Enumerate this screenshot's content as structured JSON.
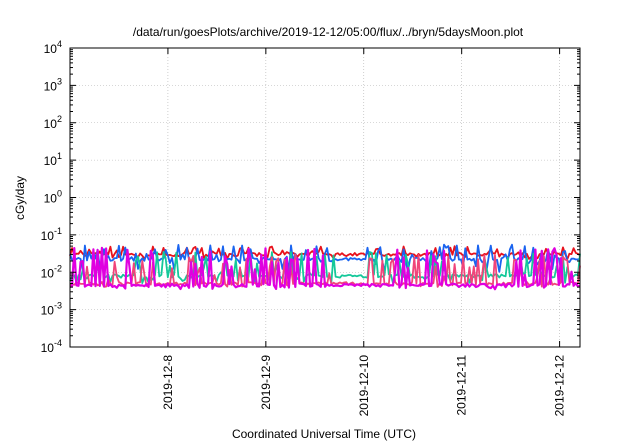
{
  "chart_data": {
    "type": "line",
    "title": "/data/run/goesPlots/archive/2019-12-12/05:00/flux/../bryn/5daysMoon.plot",
    "xlabel": "Coordinated Universal Time (UTC)",
    "ylabel": "cGy/day",
    "y_scale": "log",
    "ylim": [
      0.0001,
      10000
    ],
    "y_ticks": [
      {
        "base": "10",
        "exp": "-4"
      },
      {
        "base": "10",
        "exp": "-3"
      },
      {
        "base": "10",
        "exp": "-2"
      },
      {
        "base": "10",
        "exp": "-1"
      },
      {
        "base": "10",
        "exp": "0"
      },
      {
        "base": "10",
        "exp": "1"
      },
      {
        "base": "10",
        "exp": "2"
      },
      {
        "base": "10",
        "exp": "3"
      },
      {
        "base": "10",
        "exp": "4"
      }
    ],
    "x_range": [
      "2019-12-07 00:00",
      "2019-12-12 05:00"
    ],
    "x_ticks": [
      "2019-12-8",
      "2019-12-9",
      "2019-12-10",
      "2019-12-11",
      "2019-12-12"
    ],
    "grid": true,
    "legend": "none",
    "series": [
      {
        "color": "#e8121c",
        "baseline": 0.03,
        "spike_high": 0.05,
        "spike_low": 0.022
      },
      {
        "color": "#1a64f0",
        "baseline": 0.022,
        "spike_high": 0.055,
        "spike_low": 0.01
      },
      {
        "color": "#15c89a",
        "baseline": 0.008,
        "spike_high": 0.035,
        "spike_low": 0.005
      },
      {
        "color": "#f0447a",
        "baseline": 0.005,
        "spike_high": 0.03,
        "spike_low": 0.004
      },
      {
        "color": "#e000e0",
        "baseline": 0.0045,
        "spike_high": 0.045,
        "spike_low": 0.0035
      }
    ]
  }
}
